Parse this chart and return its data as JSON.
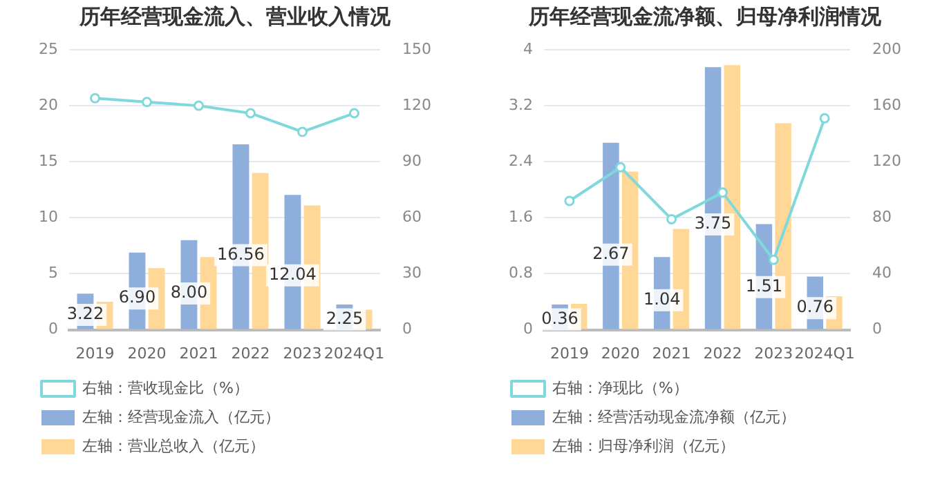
{
  "chart_data": [
    {
      "type": "bar",
      "title": "历年经营现金流入、营业收入情况",
      "categories": [
        "2019",
        "2020",
        "2021",
        "2022",
        "2023",
        "2024Q1"
      ],
      "series": [
        {
          "name": "左轴：经营现金流入（亿元）",
          "color": "#8eaedb",
          "values": [
            3.22,
            6.9,
            8.0,
            16.56,
            12.04,
            2.25
          ],
          "value_labels": [
            "3.22",
            "6.90",
            "8.00",
            "16.56",
            "12.04",
            "2.25"
          ]
        },
        {
          "name": "左轴：营业总收入（亿元）",
          "color": "#ffd898",
          "values": [
            2.5,
            5.5,
            6.5,
            14.0,
            11.1,
            1.8
          ]
        },
        {
          "name": "右轴：营收现金比（%）",
          "color": "#7fd8db",
          "type": "line",
          "axis": "y2",
          "values": [
            124,
            122,
            120,
            116,
            106,
            116
          ]
        }
      ],
      "ylim": [
        0,
        25
      ],
      "yticks": [
        0,
        5,
        10,
        15,
        20,
        25
      ],
      "y2lim": [
        0,
        150
      ],
      "y2ticks": [
        0,
        30,
        60,
        90,
        120,
        150
      ],
      "grid": "y",
      "legend": "bottom",
      "marker": "circle"
    },
    {
      "type": "bar",
      "title": "历年经营现金流净额、归母净利润情况",
      "categories": [
        "2019",
        "2020",
        "2021",
        "2022",
        "2023",
        "2024Q1"
      ],
      "series": [
        {
          "name": "左轴：经营活动现金流净额（亿元）",
          "color": "#8eaedb",
          "values": [
            0.36,
            2.67,
            1.04,
            3.75,
            1.51,
            0.76
          ],
          "value_labels": [
            "0.36",
            "2.67",
            "1.04",
            "3.75",
            "1.51",
            "0.76"
          ]
        },
        {
          "name": "左轴：归母净利润（亿元）",
          "color": "#ffd898",
          "values": [
            0.37,
            2.26,
            1.44,
            3.78,
            2.95,
            0.48
          ]
        },
        {
          "name": "右轴：净现比（%）",
          "color": "#7fd8db",
          "type": "line",
          "axis": "y2",
          "values": [
            92,
            116,
            79,
            98,
            50,
            151
          ]
        }
      ],
      "ylim": [
        0,
        4
      ],
      "yticks": [
        0,
        0.8,
        1.6,
        2.4,
        3.2,
        4
      ],
      "y2lim": [
        0,
        200
      ],
      "y2ticks": [
        0,
        40,
        80,
        120,
        160,
        200
      ],
      "grid": "y",
      "legend": "bottom",
      "marker": "circle"
    }
  ]
}
